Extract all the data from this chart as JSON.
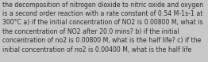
{
  "lines": [
    "the decomposition of nitrogen dioxide to nitric oxide and oxygen",
    "is a second order reaction with a rate constant of 0.54 M-1s-1 at",
    "300°C a) if the initial concentration of NO2 is 0.00800 M, what is",
    "the concentration of NO2 after 20.0 mins? b) if the initial",
    "concentration of no2 is 0.00800 M, what is the half life? c) if the",
    "initial concentration of no2 is 0.00400 M, what is the half life"
  ],
  "background_color": "#c8c8c8",
  "text_color": "#2b2b2b",
  "font_size": 5.6,
  "fig_width": 2.62,
  "fig_height": 0.79,
  "dpi": 100
}
